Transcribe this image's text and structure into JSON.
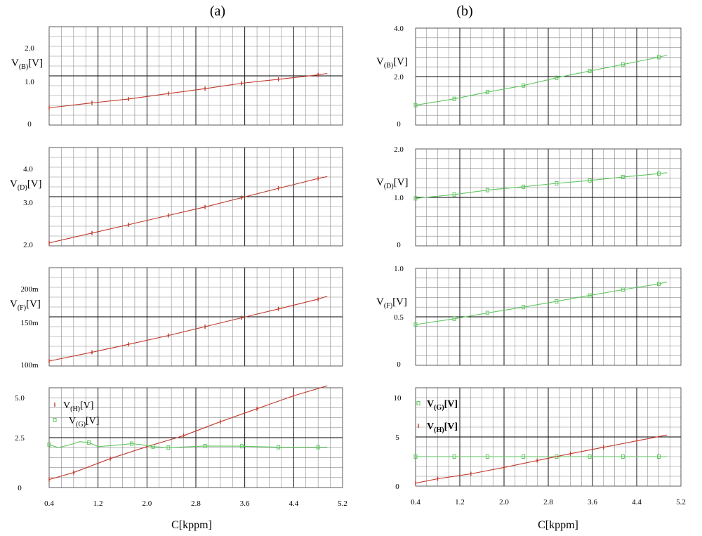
{
  "figure": {
    "label_a": "(a)",
    "label_b": "(b)",
    "xlabel_a": "C[kppm]",
    "xlabel_b": "C[kppm]"
  },
  "colors": {
    "red": "#c0392b",
    "green": "#5ec65e",
    "grid_major": "#000000",
    "grid_minor": "#8a8a8a"
  },
  "chart_data": [
    {
      "id": "a1",
      "type": "line",
      "panel": "(a)",
      "ylabel_main": "V",
      "ylabel_sub": "(B)",
      "ylabel_unit": "[V]",
      "ylim": [
        0,
        2.0
      ],
      "yticks": [
        "2.0",
        "1.0",
        "0"
      ],
      "xlim": [
        0.4,
        5.0
      ],
      "series": [
        {
          "name": "V(B)",
          "color": "red",
          "x": [
            0.4,
            1.1,
            1.7,
            2.35,
            2.95,
            3.55,
            4.15,
            4.8,
            4.95
          ],
          "y": [
            0.35,
            0.45,
            0.53,
            0.64,
            0.74,
            0.85,
            0.93,
            1.02,
            1.05
          ]
        }
      ]
    },
    {
      "id": "a2",
      "type": "line",
      "panel": "(a)",
      "ylabel_main": "V",
      "ylabel_sub": "(D)",
      "ylabel_unit": "[V]",
      "ylim": [
        2.0,
        4.0
      ],
      "yticks": [
        "4.0",
        "3.0",
        "2.0"
      ],
      "xlim": [
        0.4,
        5.0
      ],
      "series": [
        {
          "name": "V(D)",
          "color": "red",
          "x": [
            0.4,
            1.1,
            1.7,
            2.35,
            2.95,
            3.55,
            4.15,
            4.8,
            4.95
          ],
          "y": [
            2.06,
            2.26,
            2.43,
            2.62,
            2.79,
            2.98,
            3.17,
            3.37,
            3.41
          ]
        }
      ]
    },
    {
      "id": "a3",
      "type": "line",
      "panel": "(a)",
      "ylabel_main": "V",
      "ylabel_sub": "(F)",
      "ylabel_unit": "[V]",
      "ylim": [
        100,
        200
      ],
      "yticks": [
        "200m",
        "150m",
        "100m"
      ],
      "xlim": [
        0.4,
        5.0
      ],
      "series": [
        {
          "name": "V(F)",
          "color": "red",
          "x": [
            0.4,
            1.1,
            1.7,
            2.35,
            2.95,
            3.55,
            4.15,
            4.8,
            4.95
          ],
          "y": [
            105,
            114,
            122,
            131,
            140,
            149,
            158,
            168,
            171
          ]
        }
      ]
    },
    {
      "id": "a4",
      "type": "line",
      "panel": "(a)",
      "ylim": [
        0,
        5.0
      ],
      "yticks": [
        "5.0",
        "2.5",
        "0"
      ],
      "xlim": [
        0.4,
        5.0
      ],
      "xticks": [
        "0.4",
        "1.2",
        "2.0",
        "2.8",
        "3.6",
        "4.4",
        "5.2"
      ],
      "xlabel": "C[kppm]",
      "legend": [
        {
          "main": "V",
          "sub": "(H)",
          "unit": "[V]",
          "color": "red"
        },
        {
          "main": "V",
          "sub": "(G)",
          "unit": "[V]",
          "color": "green"
        }
      ],
      "series": [
        {
          "name": "V(H)",
          "color": "red",
          "x": [
            0.4,
            0.8,
            1.4,
            2.0,
            2.6,
            3.2,
            3.8,
            4.4,
            4.95
          ],
          "y": [
            0.4,
            0.75,
            1.45,
            2.05,
            2.6,
            3.3,
            3.95,
            4.6,
            5.1
          ]
        },
        {
          "name": "V(G)",
          "color": "green",
          "x": [
            0.4,
            0.55,
            0.75,
            0.9,
            1.05,
            1.2,
            1.4,
            1.6,
            1.75,
            1.9,
            2.1,
            2.35,
            2.95,
            3.55,
            4.15,
            4.8,
            4.95
          ],
          "y": [
            2.15,
            2.0,
            2.15,
            2.3,
            2.25,
            2.05,
            2.1,
            2.15,
            2.2,
            2.15,
            2.05,
            2.0,
            2.08,
            2.07,
            2.02,
            2.02,
            2.02
          ]
        }
      ]
    },
    {
      "id": "b1",
      "type": "line",
      "panel": "(b)",
      "ylabel_main": "V",
      "ylabel_sub": "(B)",
      "ylabel_unit": "[V]",
      "ylim": [
        0,
        4.0
      ],
      "yticks": [
        "4.0",
        "2.0",
        "0"
      ],
      "xlim": [
        0.4,
        5.0
      ],
      "series": [
        {
          "name": "V(B)",
          "color": "green",
          "x": [
            0.4,
            1.1,
            1.7,
            2.35,
            2.95,
            3.55,
            4.15,
            4.8,
            4.95
          ],
          "y": [
            0.82,
            1.08,
            1.36,
            1.63,
            1.95,
            2.23,
            2.5,
            2.8,
            2.88
          ]
        }
      ]
    },
    {
      "id": "b2",
      "type": "line",
      "panel": "(b)",
      "ylabel_main": "V",
      "ylabel_sub": "(D)",
      "ylabel_unit": "[V]",
      "ylim": [
        0,
        2.0
      ],
      "yticks": [
        "2.0",
        "1.0",
        "0"
      ],
      "xlim": [
        0.4,
        5.0
      ],
      "series": [
        {
          "name": "V(D)",
          "color": "green",
          "x": [
            0.4,
            1.1,
            1.7,
            2.35,
            2.95,
            3.55,
            4.15,
            4.8,
            4.95
          ],
          "y": [
            0.98,
            1.06,
            1.15,
            1.22,
            1.29,
            1.35,
            1.42,
            1.49,
            1.51
          ]
        }
      ]
    },
    {
      "id": "b3",
      "type": "line",
      "panel": "(b)",
      "ylabel_main": "V",
      "ylabel_sub": "(F)",
      "ylabel_unit": "[V]",
      "ylim": [
        0,
        1.0
      ],
      "yticks": [
        "1.0",
        "0.5",
        "0"
      ],
      "xlim": [
        0.4,
        5.0
      ],
      "series": [
        {
          "name": "V(F)",
          "color": "green",
          "x": [
            0.4,
            1.1,
            1.7,
            2.35,
            2.95,
            3.55,
            4.15,
            4.8,
            4.95
          ],
          "y": [
            0.42,
            0.48,
            0.54,
            0.6,
            0.66,
            0.72,
            0.78,
            0.84,
            0.86
          ]
        }
      ]
    },
    {
      "id": "b4",
      "type": "line",
      "panel": "(b)",
      "ylim": [
        0,
        10
      ],
      "yticks": [
        "10",
        "5",
        "0"
      ],
      "xlim": [
        0.4,
        5.0
      ],
      "xticks": [
        "0.4",
        "1.2",
        "2.0",
        "2.8",
        "3.6",
        "4.4",
        "5.2"
      ],
      "xlabel": "C[kppm]",
      "legend": [
        {
          "main": "V",
          "sub": "(G)",
          "unit": "[V]",
          "color": "green"
        },
        {
          "main": "V",
          "sub": "(H)",
          "unit": "[V]",
          "color": "red"
        }
      ],
      "series": [
        {
          "name": "V(G)",
          "color": "green",
          "x": [
            0.4,
            1.1,
            1.7,
            2.35,
            2.95,
            3.55,
            4.15,
            4.8,
            4.95
          ],
          "y": [
            3.0,
            3.0,
            3.0,
            3.0,
            3.0,
            3.0,
            3.0,
            3.0,
            3.0
          ]
        },
        {
          "name": "V(H)",
          "color": "red",
          "x": [
            0.4,
            0.8,
            1.4,
            2.0,
            2.6,
            3.2,
            3.8,
            4.4,
            4.95
          ],
          "y": [
            0.3,
            0.75,
            1.25,
            1.9,
            2.6,
            3.3,
            3.95,
            4.6,
            5.2
          ]
        }
      ]
    }
  ]
}
